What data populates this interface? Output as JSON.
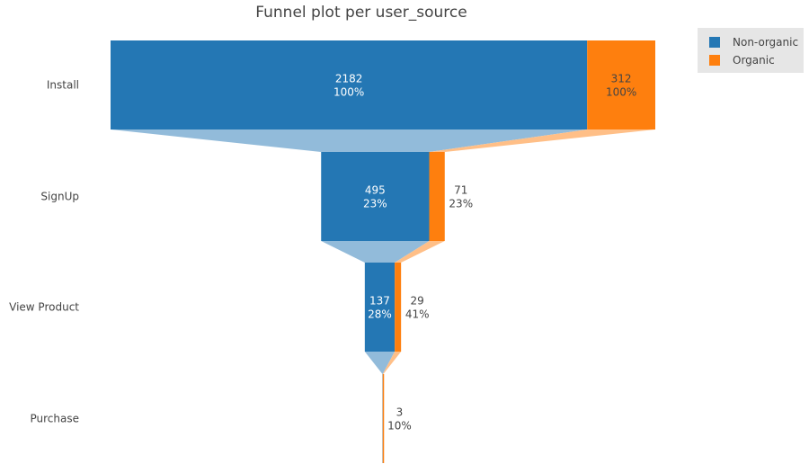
{
  "chart_data": {
    "type": "funnel",
    "title": "Funnel plot per user_source",
    "stages": [
      "Install",
      "SignUp",
      "View Product",
      "Purchase"
    ],
    "series": [
      {
        "name": "Non-organic",
        "color": "#2477b4",
        "values": [
          2182,
          495,
          137,
          1
        ],
        "percent_labels": [
          "100%",
          "23%",
          "28%",
          ""
        ]
      },
      {
        "name": "Organic",
        "color": "#fe7f0e",
        "values": [
          312,
          71,
          29,
          3
        ],
        "percent_labels": [
          "100%",
          "23%",
          "41%",
          "10%"
        ]
      }
    ],
    "legend_position": "top-right"
  },
  "legend": {
    "items": [
      {
        "label": "Non-organic",
        "color": "#2477b4"
      },
      {
        "label": "Organic",
        "color": "#fe7f0e"
      }
    ]
  }
}
